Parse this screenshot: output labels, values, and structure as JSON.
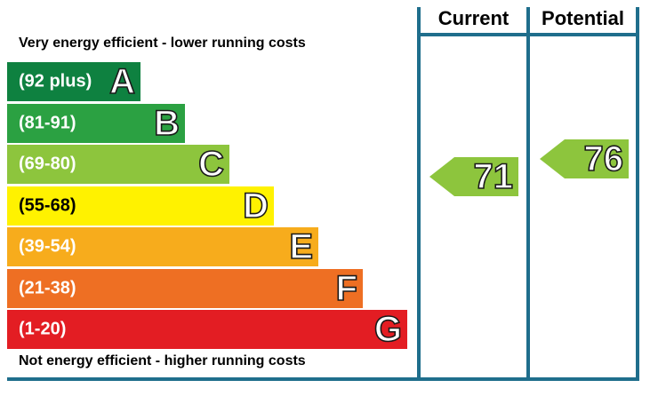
{
  "top_label": "Very energy efficient - lower running costs",
  "bottom_label": "Not energy efficient - higher running costs",
  "headers": {
    "current": "Current",
    "potential": "Potential"
  },
  "colors": {
    "frame": "#1f6e8c"
  },
  "chart_data": {
    "type": "bar",
    "bands": [
      {
        "letter": "A",
        "range": "(92 plus)",
        "color": "#0e8140"
      },
      {
        "letter": "B",
        "range": "(81-91)",
        "color": "#2ba142"
      },
      {
        "letter": "C",
        "range": "(69-80)",
        "color": "#8dc53d"
      },
      {
        "letter": "D",
        "range": "(55-68)",
        "color": "#fff200"
      },
      {
        "letter": "E",
        "range": "(39-54)",
        "color": "#f7ac1c"
      },
      {
        "letter": "F",
        "range": "(21-38)",
        "color": "#ee6f23"
      },
      {
        "letter": "G",
        "range": "(1-20)",
        "color": "#e31d23"
      }
    ],
    "current": {
      "value": "71",
      "color": "#8dc53d"
    },
    "potential": {
      "value": "76",
      "color": "#8dc53d"
    }
  }
}
